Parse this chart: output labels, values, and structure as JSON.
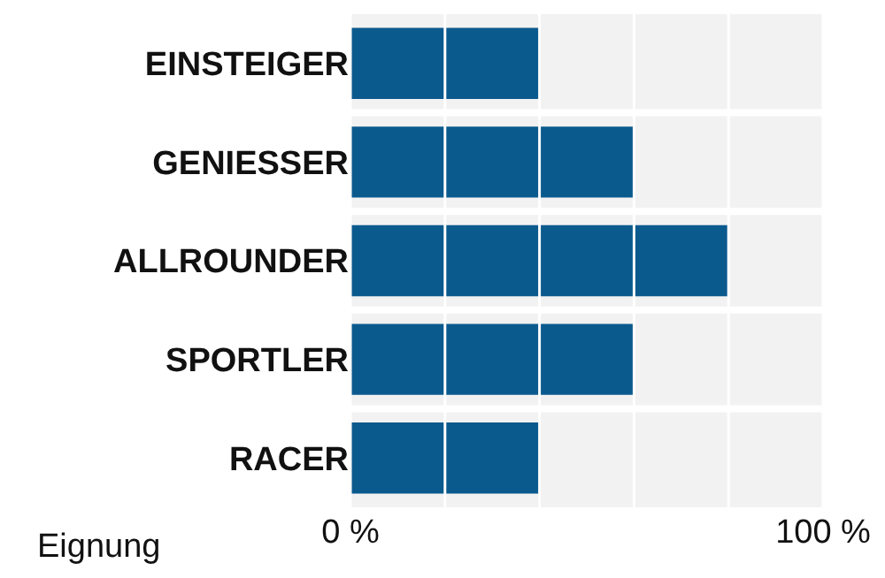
{
  "chart_data": {
    "type": "bar",
    "orientation": "horizontal",
    "categories": [
      "EINSTEIGER",
      "GENIESSER",
      "ALLROUNDER",
      "SPORTLER",
      "RACER"
    ],
    "values": [
      40,
      60,
      80,
      60,
      40
    ],
    "color": "#0b5a8e",
    "xlabel": "Eignung",
    "xlim": [
      0,
      100
    ],
    "xticks": [
      {
        "value": 0,
        "label": "0 %"
      },
      {
        "value": 20,
        "label": null
      },
      {
        "value": 40,
        "label": null
      },
      {
        "value": 60,
        "label": null
      },
      {
        "value": 80,
        "label": null
      },
      {
        "value": 100,
        "label": "100 %"
      }
    ],
    "grid": "x",
    "legend": false
  }
}
